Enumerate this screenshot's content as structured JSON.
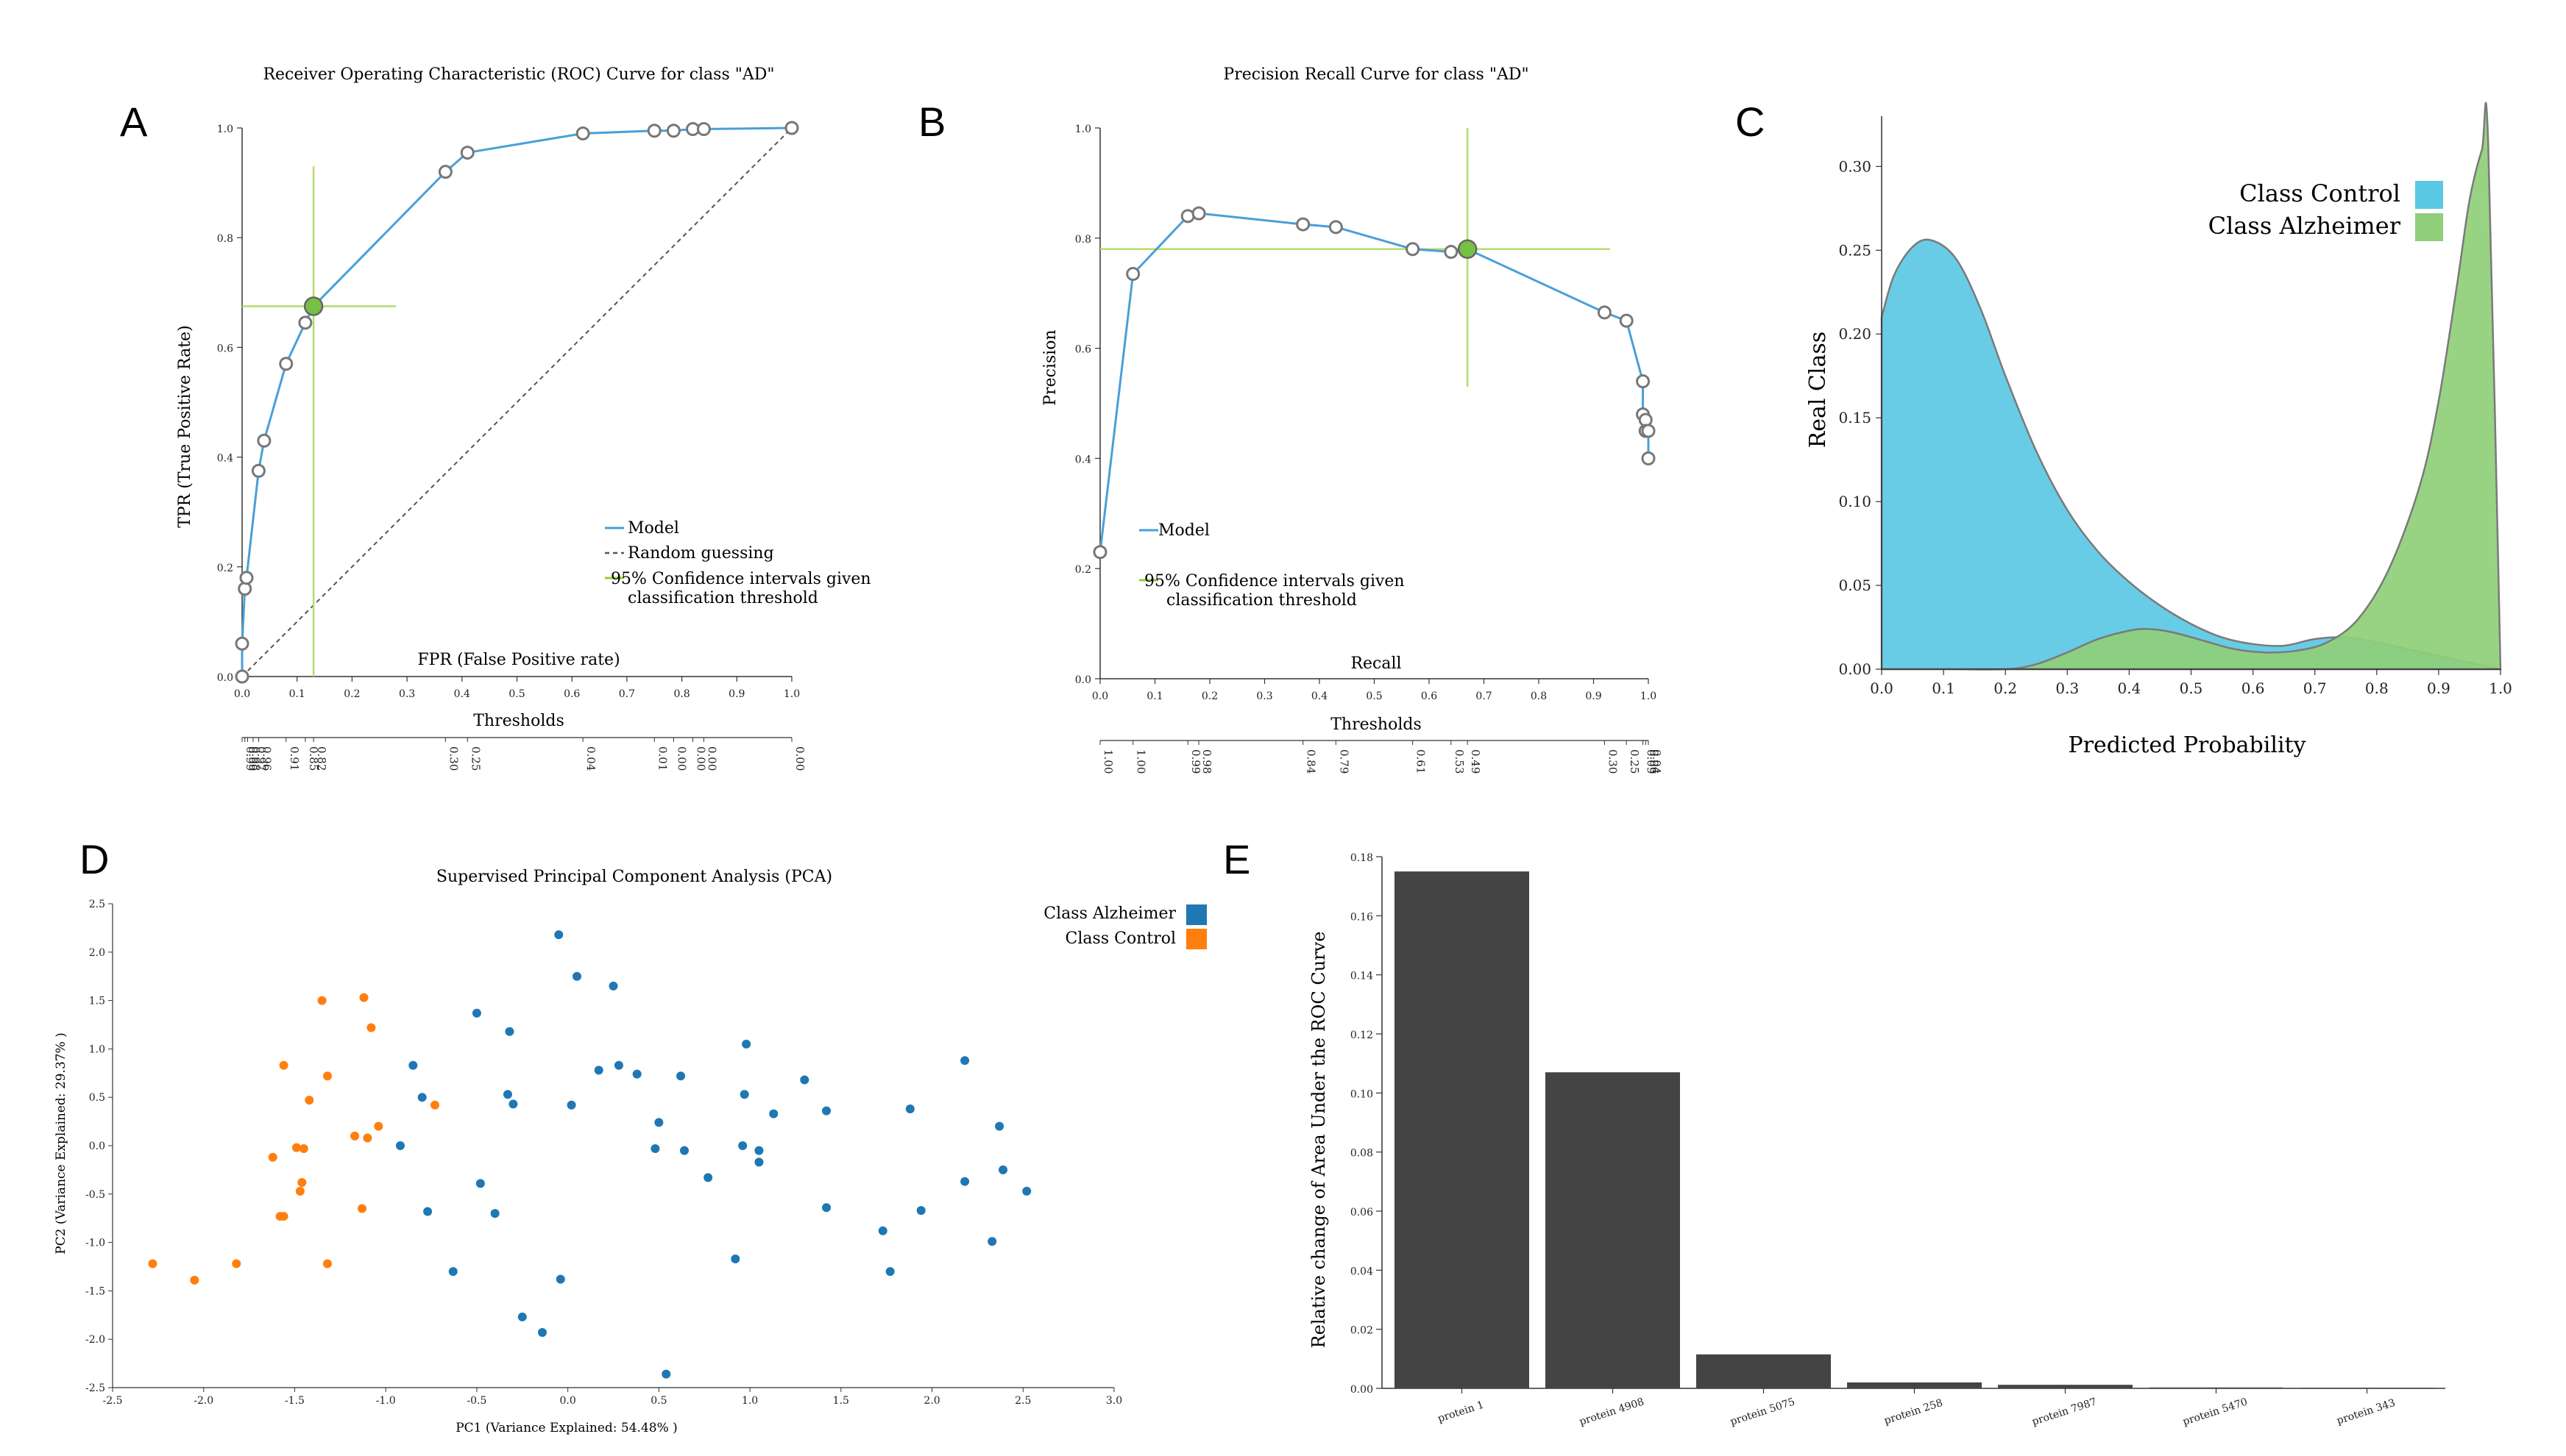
{
  "panels": {
    "A": {
      "letter": "A",
      "title": "Receiver Operating Characteristic (ROC) Curve for class \"AD\"",
      "ylabel": "TPR (True Positive Rate)",
      "xlabel": "FPR (False Positive rate)",
      "thresholds_label": "Thresholds",
      "legend": {
        "model": "Model",
        "random": "Random guessing",
        "ci_line1": "95% Confidence intervals given",
        "ci_line2": "classification threshold"
      }
    },
    "B": {
      "letter": "B",
      "title": "Precision Recall Curve for class \"AD\"",
      "ylabel": "Precision",
      "xlabel": "Recall",
      "thresholds_label": "Thresholds",
      "legend": {
        "model": "Model",
        "ci_line1": "95% Confidence intervals given",
        "ci_line2": "classification threshold"
      }
    },
    "C": {
      "letter": "C",
      "ylabel": "Real Class",
      "xlabel": "Predicted Probability",
      "legend": {
        "control": "Class Control",
        "alzheimer": "Class Alzheimer"
      }
    },
    "D": {
      "letter": "D",
      "title": "Supervised Principal Component Analysis (PCA)",
      "xlabel": "PC1 (Variance Explained: 54.48% )",
      "ylabel": "PC2 (Variance Explained: 29.37% )",
      "legend": {
        "alzheimer": "Class Alzheimer",
        "control": "Class Control"
      }
    },
    "E": {
      "letter": "E",
      "ylabel": "Relative change of Area Under the ROC Curve"
    }
  },
  "chart_data": [
    {
      "id": "A",
      "type": "line",
      "title": "Receiver Operating Characteristic (ROC) Curve for class \"AD\"",
      "xlabel": "FPR (False Positive rate)",
      "ylabel": "TPR (True Positive Rate)",
      "xlim": [
        0,
        1
      ],
      "ylim": [
        0,
        1
      ],
      "xticks": [
        "0.0",
        "0.1",
        "0.2",
        "0.3",
        "0.4",
        "0.5",
        "0.6",
        "0.7",
        "0.8",
        "0.9",
        "1.0"
      ],
      "yticks": [
        "0.0",
        "0.2",
        "0.4",
        "0.6",
        "0.8",
        "1.0"
      ],
      "series": [
        {
          "name": "Model",
          "x": [
            0.0,
            0.0,
            0.005,
            0.008,
            0.03,
            0.04,
            0.08,
            0.115,
            0.13,
            0.37,
            0.41,
            0.62,
            0.75,
            0.785,
            0.82,
            0.84,
            1.0
          ],
          "y": [
            0.0,
            0.06,
            0.16,
            0.18,
            0.375,
            0.43,
            0.57,
            0.645,
            0.675,
            0.92,
            0.955,
            0.99,
            0.995,
            0.995,
            0.998,
            0.998,
            1.0
          ]
        },
        {
          "name": "Random guessing",
          "x": [
            0,
            1
          ],
          "y": [
            0,
            1
          ]
        }
      ],
      "highlight": {
        "x": 0.13,
        "y": 0.675,
        "ci_x": [
          0.0,
          0.28
        ],
        "ci_y": [
          0.0,
          0.93
        ]
      },
      "threshold_ticks": [
        {
          "x": 0.0,
          "label": "0.99"
        },
        {
          "x": 0.005,
          "label": "0.99"
        },
        {
          "x": 0.01,
          "label": "0.98"
        },
        {
          "x": 0.02,
          "label": "0.97"
        },
        {
          "x": 0.03,
          "label": "0.96"
        },
        {
          "x": 0.08,
          "label": "0.91"
        },
        {
          "x": 0.115,
          "label": "0.85"
        },
        {
          "x": 0.13,
          "label": "0.82"
        },
        {
          "x": 0.37,
          "label": "0.30"
        },
        {
          "x": 0.41,
          "label": "0.25"
        },
        {
          "x": 0.62,
          "label": "0.04"
        },
        {
          "x": 0.75,
          "label": "0.01"
        },
        {
          "x": 0.785,
          "label": "0.00"
        },
        {
          "x": 0.82,
          "label": "0.00"
        },
        {
          "x": 0.84,
          "label": "0.00"
        },
        {
          "x": 1.0,
          "label": "0.00"
        }
      ]
    },
    {
      "id": "B",
      "type": "line",
      "title": "Precision Recall Curve for class \"AD\"",
      "xlabel": "Recall",
      "ylabel": "Precision",
      "xlim": [
        0,
        1
      ],
      "ylim": [
        0,
        1
      ],
      "xticks": [
        "0.0",
        "0.1",
        "0.2",
        "0.3",
        "0.4",
        "0.5",
        "0.6",
        "0.7",
        "0.8",
        "0.9",
        "1.0"
      ],
      "yticks": [
        "0.0",
        "0.2",
        "0.4",
        "0.6",
        "0.8",
        "1.0"
      ],
      "series": [
        {
          "name": "Model",
          "x": [
            0.0,
            0.06,
            0.16,
            0.18,
            0.37,
            0.43,
            0.57,
            0.64,
            0.67,
            0.92,
            0.96,
            0.99,
            0.99,
            0.995,
            0.995,
            1.0,
            1.0
          ],
          "y": [
            0.23,
            0.735,
            0.84,
            0.845,
            0.825,
            0.82,
            0.78,
            0.775,
            0.78,
            0.665,
            0.65,
            0.54,
            0.48,
            0.47,
            0.45,
            0.45,
            0.4
          ]
        }
      ],
      "highlight": {
        "x": 0.67,
        "y": 0.78,
        "ci_x": [
          0.0,
          0.93
        ],
        "ci_y": [
          0.53,
          1.0
        ]
      },
      "threshold_ticks": [
        {
          "x": 0.0,
          "label": "1.00"
        },
        {
          "x": 0.06,
          "label": "1.00"
        },
        {
          "x": 0.16,
          "label": "0.99"
        },
        {
          "x": 0.18,
          "label": "0.98"
        },
        {
          "x": 0.37,
          "label": "0.84"
        },
        {
          "x": 0.43,
          "label": "0.79"
        },
        {
          "x": 0.57,
          "label": "0.61"
        },
        {
          "x": 0.64,
          "label": "0.53"
        },
        {
          "x": 0.67,
          "label": "0.49"
        },
        {
          "x": 0.92,
          "label": "0.30"
        },
        {
          "x": 0.96,
          "label": "0.25"
        },
        {
          "x": 0.99,
          "label": "0.09"
        },
        {
          "x": 0.995,
          "label": "0.06"
        },
        {
          "x": 1.0,
          "label": "0.04"
        }
      ]
    },
    {
      "id": "C",
      "type": "area",
      "xlabel": "Predicted Probability",
      "ylabel": "Real Class",
      "xlim": [
        0,
        1
      ],
      "ylim": [
        0,
        0.33
      ],
      "xticks": [
        "0.0",
        "0.1",
        "0.2",
        "0.3",
        "0.4",
        "0.5",
        "0.6",
        "0.7",
        "0.8",
        "0.9",
        "1.0"
      ],
      "yticks": [
        "0.00",
        "0.05",
        "0.10",
        "0.15",
        "0.20",
        "0.25",
        "0.30"
      ],
      "series": [
        {
          "name": "Class Control",
          "color": "#5bc8e4",
          "x": [
            0.0,
            0.02,
            0.05,
            0.08,
            0.12,
            0.16,
            0.2,
            0.25,
            0.3,
            0.35,
            0.4,
            0.45,
            0.5,
            0.55,
            0.6,
            0.65,
            0.7,
            0.75,
            0.8,
            0.85,
            0.9,
            0.95,
            1.0
          ],
          "y": [
            0.21,
            0.235,
            0.252,
            0.256,
            0.245,
            0.215,
            0.175,
            0.13,
            0.095,
            0.07,
            0.052,
            0.038,
            0.027,
            0.019,
            0.015,
            0.014,
            0.018,
            0.019,
            0.016,
            0.012,
            0.008,
            0.004,
            0.0
          ]
        },
        {
          "name": "Class Alzheimer",
          "color": "#8fcf7a",
          "x": [
            0.0,
            0.1,
            0.2,
            0.25,
            0.3,
            0.35,
            0.4,
            0.43,
            0.47,
            0.52,
            0.57,
            0.62,
            0.67,
            0.72,
            0.77,
            0.82,
            0.87,
            0.9,
            0.93,
            0.95,
            0.97,
            0.98,
            1.0
          ],
          "y": [
            0.0,
            0.0,
            0.0,
            0.003,
            0.01,
            0.018,
            0.023,
            0.024,
            0.022,
            0.017,
            0.012,
            0.01,
            0.011,
            0.016,
            0.03,
            0.06,
            0.11,
            0.16,
            0.23,
            0.28,
            0.31,
            0.315,
            0.0
          ]
        }
      ],
      "legend_position": "top-right"
    },
    {
      "id": "D",
      "type": "scatter",
      "title": "Supervised Principal Component Analysis (PCA)",
      "xlabel": "PC1 (Variance Explained: 54.48% )",
      "ylabel": "PC2 (Variance Explained: 29.37% )",
      "xlim": [
        -2.5,
        3.0
      ],
      "ylim": [
        -2.5,
        2.5
      ],
      "xticks": [
        "-2.5",
        "-2.0",
        "-1.5",
        "-1.0",
        "-0.5",
        "0.0",
        "0.5",
        "1.0",
        "1.5",
        "2.0",
        "2.5",
        "3.0"
      ],
      "yticks": [
        "-2.5",
        "-2.0",
        "-1.5",
        "-1.0",
        "-0.5",
        "0.0",
        "0.5",
        "1.0",
        "1.5",
        "2.0",
        "2.5"
      ],
      "series": [
        {
          "name": "Class Alzheimer",
          "color": "#1f77b4",
          "points": [
            [
              -0.05,
              2.18
            ],
            [
              0.05,
              1.75
            ],
            [
              0.25,
              1.65
            ],
            [
              -0.5,
              1.37
            ],
            [
              -0.32,
              1.18
            ],
            [
              -0.85,
              0.83
            ],
            [
              0.17,
              0.78
            ],
            [
              0.28,
              0.83
            ],
            [
              0.38,
              0.74
            ],
            [
              0.62,
              0.72
            ],
            [
              0.98,
              1.05
            ],
            [
              -0.8,
              0.5
            ],
            [
              -0.33,
              0.53
            ],
            [
              -0.3,
              0.43
            ],
            [
              0.02,
              0.42
            ],
            [
              0.97,
              0.53
            ],
            [
              1.3,
              0.68
            ],
            [
              1.42,
              0.36
            ],
            [
              1.88,
              0.38
            ],
            [
              2.18,
              0.88
            ],
            [
              2.37,
              0.2
            ],
            [
              -0.92,
              0.0
            ],
            [
              0.5,
              0.24
            ],
            [
              0.48,
              -0.03
            ],
            [
              0.64,
              -0.05
            ],
            [
              0.96,
              0.0
            ],
            [
              1.05,
              -0.05
            ],
            [
              1.13,
              0.33
            ],
            [
              1.05,
              -0.17
            ],
            [
              0.77,
              -0.33
            ],
            [
              -0.48,
              -0.39
            ],
            [
              -0.4,
              -0.7
            ],
            [
              -0.77,
              -0.68
            ],
            [
              2.18,
              -0.37
            ],
            [
              2.39,
              -0.25
            ],
            [
              2.52,
              -0.47
            ],
            [
              1.42,
              -0.64
            ],
            [
              1.94,
              -0.67
            ],
            [
              1.73,
              -0.88
            ],
            [
              0.92,
              -1.17
            ],
            [
              1.77,
              -1.3
            ],
            [
              2.33,
              -0.99
            ],
            [
              -0.63,
              -1.3
            ],
            [
              -0.04,
              -1.38
            ],
            [
              -0.25,
              -1.77
            ],
            [
              -0.14,
              -1.93
            ],
            [
              0.54,
              -2.36
            ]
          ]
        },
        {
          "name": "Class Control",
          "color": "#ff7f0e",
          "points": [
            [
              -1.12,
              1.53
            ],
            [
              -1.35,
              1.5
            ],
            [
              -1.08,
              1.22
            ],
            [
              -1.56,
              0.83
            ],
            [
              -1.32,
              0.72
            ],
            [
              -1.42,
              0.47
            ],
            [
              -0.73,
              0.42
            ],
            [
              -1.04,
              0.2
            ],
            [
              -1.17,
              0.1
            ],
            [
              -1.1,
              0.08
            ],
            [
              -1.49,
              -0.02
            ],
            [
              -1.45,
              -0.03
            ],
            [
              -1.62,
              -0.12
            ],
            [
              -1.46,
              -0.38
            ],
            [
              -1.47,
              -0.47
            ],
            [
              -1.13,
              -0.65
            ],
            [
              -1.58,
              -0.73
            ],
            [
              -1.56,
              -0.73
            ],
            [
              -1.32,
              -1.22
            ],
            [
              -1.82,
              -1.22
            ],
            [
              -2.28,
              -1.22
            ],
            [
              -2.05,
              -1.39
            ]
          ]
        }
      ],
      "legend_position": "top-right"
    },
    {
      "id": "E",
      "type": "bar",
      "ylabel": "Relative change of Area Under the ROC Curve",
      "ylim": [
        0,
        0.18
      ],
      "yticks": [
        "0.00",
        "0.02",
        "0.04",
        "0.06",
        "0.08",
        "0.10",
        "0.12",
        "0.14",
        "0.16",
        "0.18"
      ],
      "categories": [
        "protein 1",
        "protein 4908",
        "protein 5075",
        "protein 258",
        "protein 7987",
        "protein 5470",
        "protein 343"
      ],
      "values": [
        0.175,
        0.107,
        0.0115,
        0.002,
        0.0012,
        0.0003,
        0.0002
      ],
      "color": "#444444"
    }
  ]
}
